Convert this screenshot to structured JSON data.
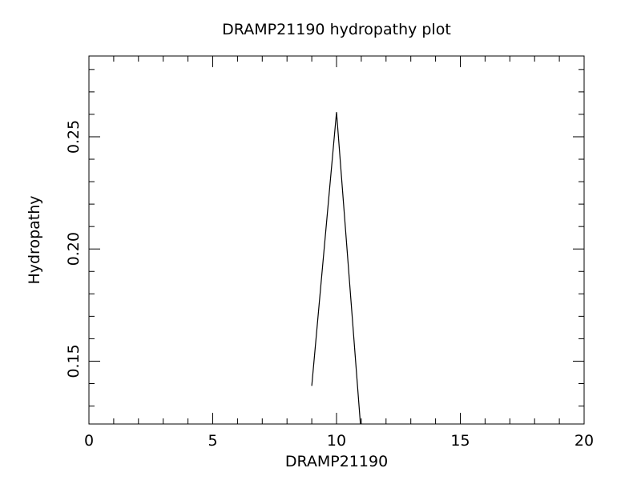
{
  "chart_data": {
    "type": "line",
    "title": "DRAMP21190 hydropathy plot",
    "xlabel": "DRAMP21190",
    "ylabel": "Hydropathy",
    "xlim": [
      0,
      20
    ],
    "ylim": [
      0.122,
      0.286
    ],
    "x_ticks": [
      0,
      5,
      10,
      15,
      20
    ],
    "x_tick_labels": [
      "0",
      "5",
      "10",
      "15",
      "20"
    ],
    "y_ticks": [
      0.15,
      0.2,
      0.25
    ],
    "y_tick_labels": [
      "0.15",
      "0.20",
      "0.25"
    ],
    "grid": false,
    "series": [
      {
        "x": [
          9,
          10,
          11
        ],
        "y": [
          0.139,
          0.261,
          0.117
        ]
      }
    ]
  }
}
